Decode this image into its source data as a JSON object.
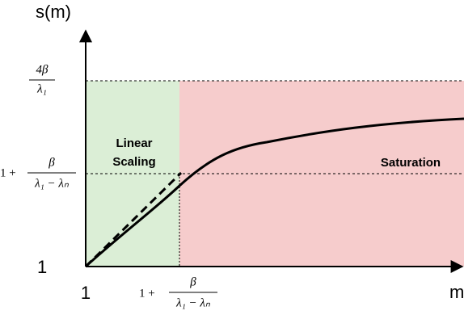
{
  "axes": {
    "y_label": "s(m)",
    "x_label": "m",
    "y_origin": "1",
    "x_origin": "1"
  },
  "y_ticks": [
    {
      "numerator": "4β",
      "denominator": "λ₁"
    },
    {
      "prefix": "1 +",
      "numerator": "β",
      "denominator": "λ₁ − λₙ"
    }
  ],
  "x_tick": {
    "prefix": "1 +",
    "numerator": "β",
    "denominator": "λ₁ − λₙ"
  },
  "regions": {
    "linear": [
      "Linear",
      "Scaling"
    ],
    "saturation": "Saturation"
  }
}
